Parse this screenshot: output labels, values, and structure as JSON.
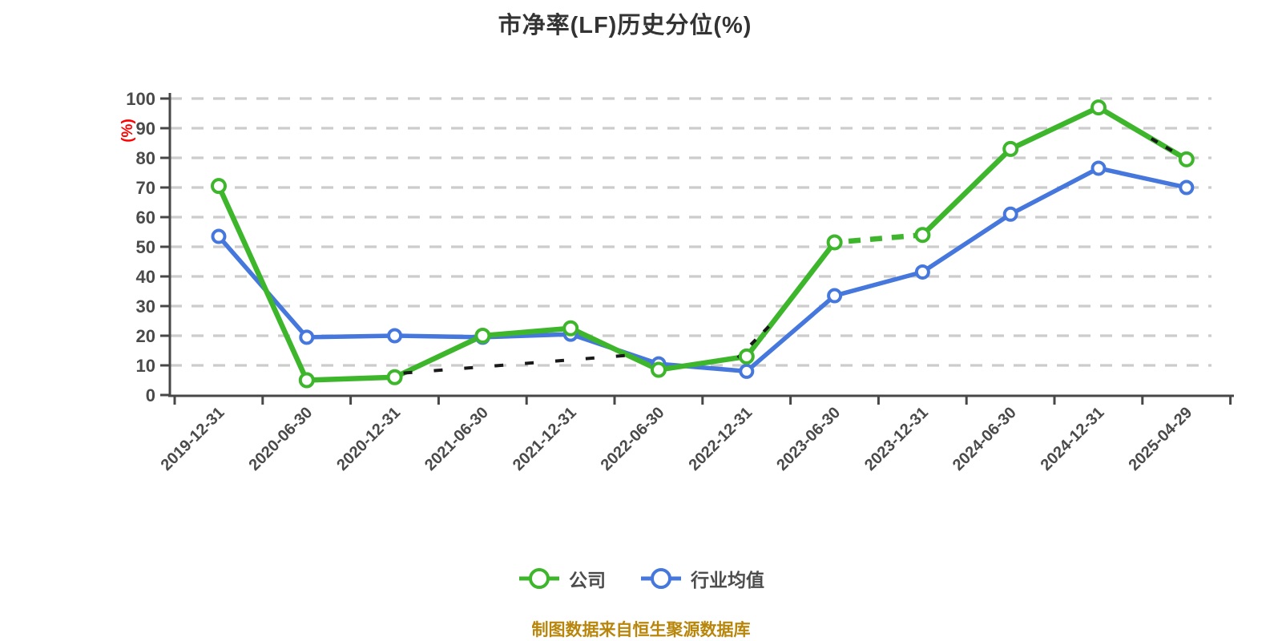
{
  "chart_data": {
    "type": "line",
    "title": "市净率(LF)历史分位(%)",
    "y_axis_name": "(%)",
    "xlabel": "",
    "ylabel": "(%)",
    "ylim": [
      0,
      100
    ],
    "ytick_step": 10,
    "ytick_labels": [
      "0",
      "10",
      "20",
      "30",
      "40",
      "50",
      "60",
      "70",
      "80",
      "90",
      "100"
    ],
    "grid": "dashed",
    "legend_position": "bottom",
    "categories": [
      "2019-12-31",
      "2020-06-30",
      "2020-12-31",
      "2021-06-30",
      "2021-12-31",
      "2022-06-30",
      "2022-12-31",
      "2023-06-30",
      "2023-12-31",
      "2024-06-30",
      "2024-12-31",
      "2025-04-29"
    ],
    "series": [
      {
        "name": "公司",
        "color": "#3db62c",
        "values": [
          70.5,
          5,
          6,
          20,
          22.5,
          8.5,
          13,
          51.5,
          54,
          83,
          97,
          79.5
        ]
      },
      {
        "name": "行业均值",
        "color": "#4577dd",
        "values": [
          53.5,
          19.5,
          20,
          19.5,
          20.5,
          10.5,
          8,
          33.5,
          41.5,
          61,
          76.5,
          70
        ]
      }
    ],
    "dashed_overlays": [
      {
        "series": 0,
        "from": 2.1,
        "to": 4.65,
        "color": "#1a1a1a",
        "dash": "11 27",
        "width": 4
      },
      {
        "series": 0,
        "from": 5.9,
        "to": 6.3,
        "color": "#1a1a1a",
        "dash": "9 14",
        "width": 4
      },
      {
        "series": 0,
        "from": 7.05,
        "to": 7.95,
        "color": "#ffffff",
        "dash": "12 15",
        "width": 8
      },
      {
        "series": 0,
        "from": 10.6,
        "to": 10.97,
        "color": "#1a1a1a",
        "dash": "9 12",
        "width": 4
      }
    ]
  },
  "legend": {
    "items": [
      {
        "label": "公司"
      },
      {
        "label": "行业均值"
      }
    ]
  },
  "footer_note": "制图数据来自恒生聚源数据库",
  "style_colors": {
    "title_text": "#333333",
    "axis_line": "#474747",
    "tick_label": "#4a4a4a",
    "gridline": "#cccccc",
    "y_axis_name": "#ff0000",
    "footer_text": "#b8860b",
    "marker_fill": "#ffffff"
  }
}
